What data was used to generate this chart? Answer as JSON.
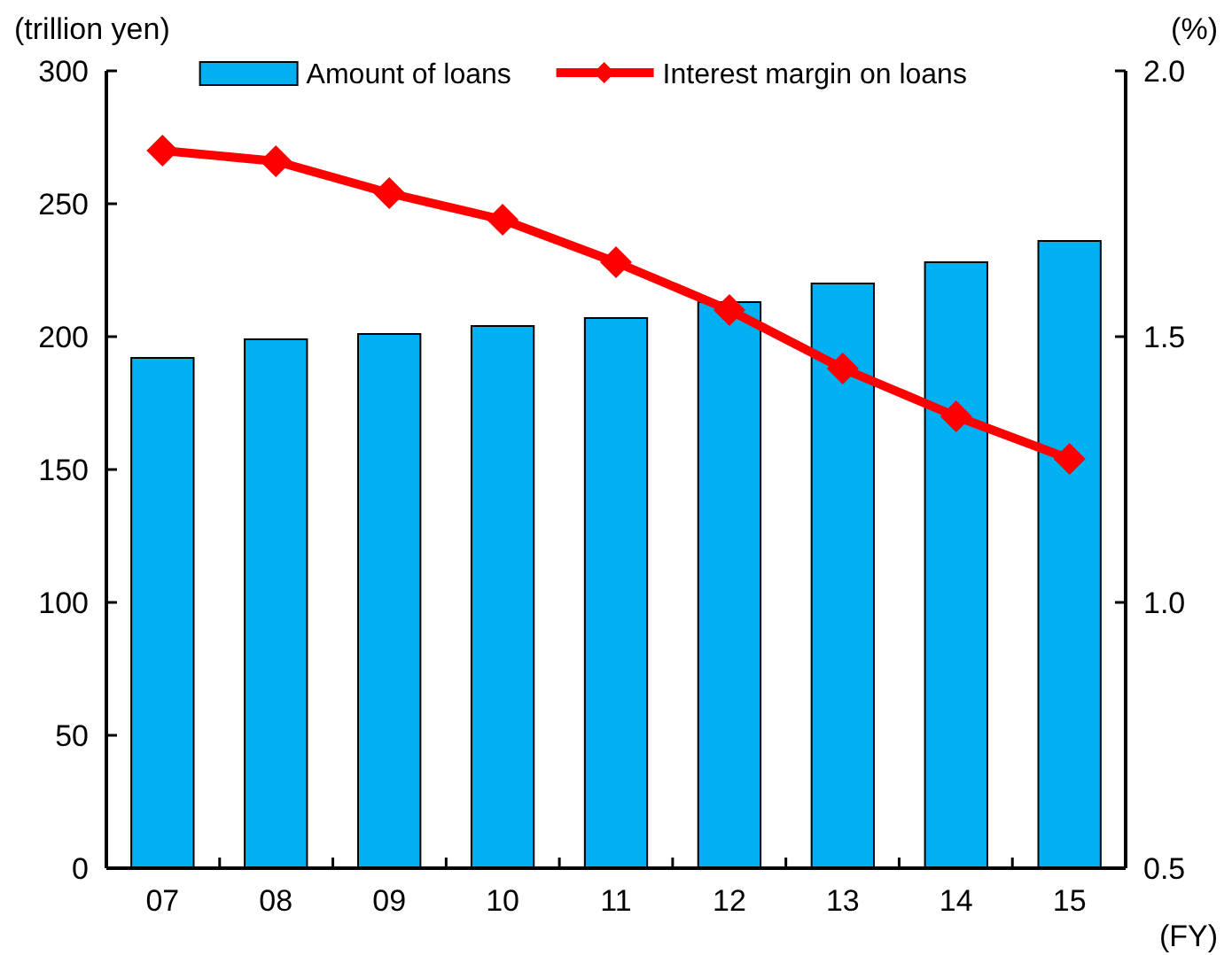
{
  "chart_data": {
    "type": "bar",
    "categories": [
      "07",
      "08",
      "09",
      "10",
      "11",
      "12",
      "13",
      "14",
      "15"
    ],
    "series": [
      {
        "name": "Amount of loans",
        "color": "#00b0f0",
        "values": [
          192,
          199,
          201,
          204,
          207,
          213,
          220,
          228,
          236
        ]
      },
      {
        "name": "Interest margin on loans",
        "type": "line",
        "axis": "y2",
        "color": "#ff0000",
        "marker": "diamond",
        "values": [
          1.85,
          1.83,
          1.77,
          1.72,
          1.64,
          1.55,
          1.44,
          1.35,
          1.27
        ]
      }
    ],
    "ylabel": "(trillion yen)",
    "y2label": "(%)",
    "xlabel": "(FY)",
    "ylim": [
      0,
      300
    ],
    "yticks": [
      0,
      50,
      100,
      150,
      200,
      250,
      300
    ],
    "y2lim": [
      0.5,
      2.0
    ],
    "y2ticks": [
      {
        "value": 0.5,
        "label": "0.5"
      },
      {
        "value": 1.0,
        "label": "1.0"
      },
      {
        "value": 1.5,
        "label": "1.5"
      },
      {
        "value": 2.0,
        "label": "2.0"
      }
    ],
    "legend": "top",
    "grid": false
  }
}
